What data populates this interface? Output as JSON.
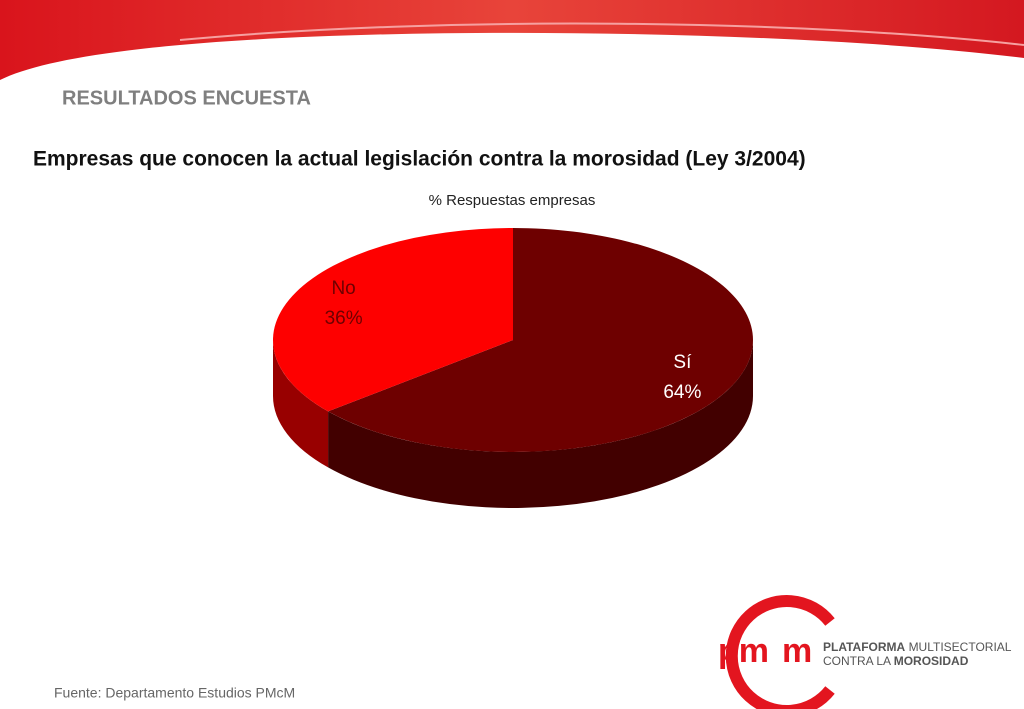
{
  "slide": {
    "section": "RESULTADOS ENCUESTA",
    "title": "Empresas que conocen la actual legislación contra la morosidad (Ley 3/2004)",
    "source": "Fuente: Departamento Estudios PMcM"
  },
  "logo": {
    "letters1": "pm",
    "letters2": "m",
    "line1_bold": "PLATAFORMA",
    "line1": "MULTISECTORIAL",
    "line2": "CONTRA LA",
    "line2_bold": "MOROSIDAD"
  },
  "chart_data": {
    "type": "pie",
    "title": "% Respuestas empresas",
    "categories": [
      "Sí",
      "No"
    ],
    "values": [
      64,
      36
    ],
    "value_labels": [
      "64%",
      "36%"
    ],
    "colors": [
      "#6e0000",
      "#fe0000"
    ]
  }
}
